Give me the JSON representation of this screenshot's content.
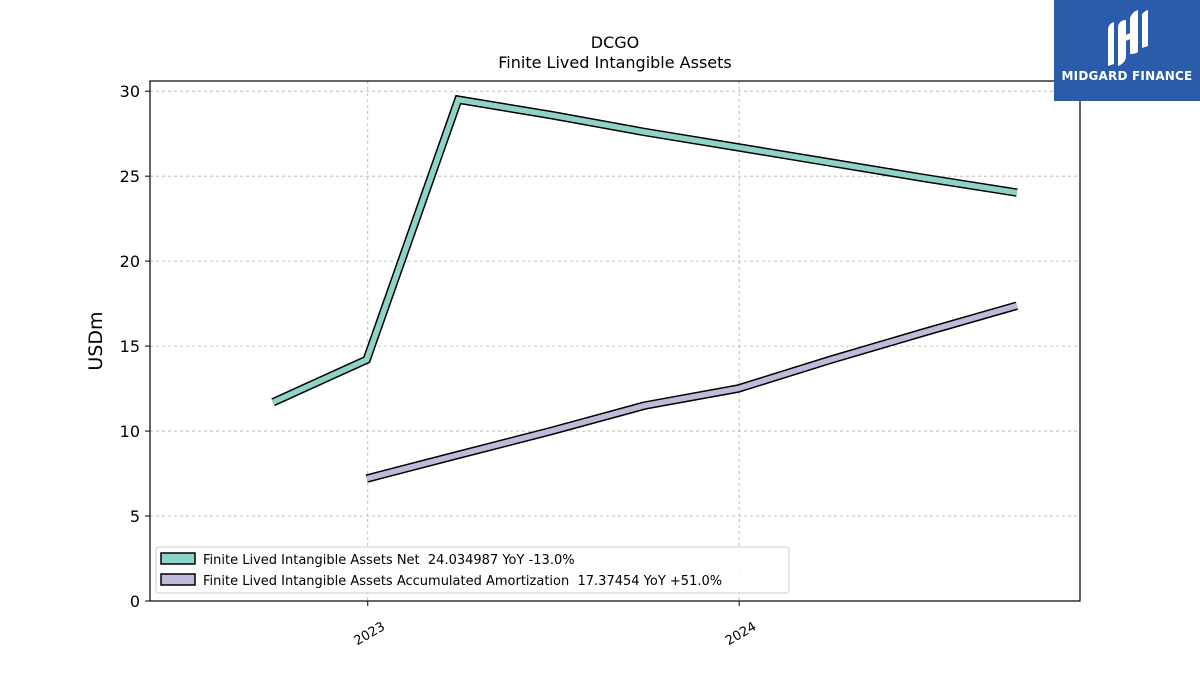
{
  "chart_data": {
    "type": "line",
    "title": "DCGO",
    "subtitle": "Finite Lived Intangible Assets",
    "ylabel": "USDm",
    "xlabel": "",
    "ylim": [
      0,
      30.6
    ],
    "yticks": [
      0,
      5,
      10,
      15,
      20,
      25,
      30
    ],
    "xticks": [
      "2023",
      "2024"
    ],
    "grid": true,
    "legend_position": "lower-left",
    "series": [
      {
        "name": "Finite Lived Intangible Assets Net  24.034987 YoY -13.0%",
        "color": "#8dd3c7",
        "points": [
          {
            "x": "2022-09-30",
            "y": 11.7
          },
          {
            "x": "2022-12-31",
            "y": 14.2
          },
          {
            "x": "2023-03-31",
            "y": 29.5
          },
          {
            "x": "2023-06-30",
            "y": 28.6
          },
          {
            "x": "2023-09-30",
            "y": 27.6
          },
          {
            "x": "2023-12-31",
            "y": 26.7
          },
          {
            "x": "2024-03-31",
            "y": 25.8
          },
          {
            "x": "2024-06-30",
            "y": 24.9
          },
          {
            "x": "2024-09-30",
            "y": 24.034987
          }
        ]
      },
      {
        "name": "Finite Lived Intangible Assets Accumulated Amortization  17.37454 YoY +51.0%",
        "color": "#bebada",
        "points": [
          {
            "x": "2022-12-31",
            "y": 7.2
          },
          {
            "x": "2023-03-31",
            "y": 8.6
          },
          {
            "x": "2023-06-30",
            "y": 10.0
          },
          {
            "x": "2023-09-30",
            "y": 11.5
          },
          {
            "x": "2023-12-31",
            "y": 12.5
          },
          {
            "x": "2024-03-31",
            "y": 14.2
          },
          {
            "x": "2024-06-30",
            "y": 15.8
          },
          {
            "x": "2024-09-30",
            "y": 17.37454
          }
        ]
      }
    ]
  },
  "logo": {
    "text": "MIDGARD FINANCE",
    "background": "#2a5cab"
  }
}
